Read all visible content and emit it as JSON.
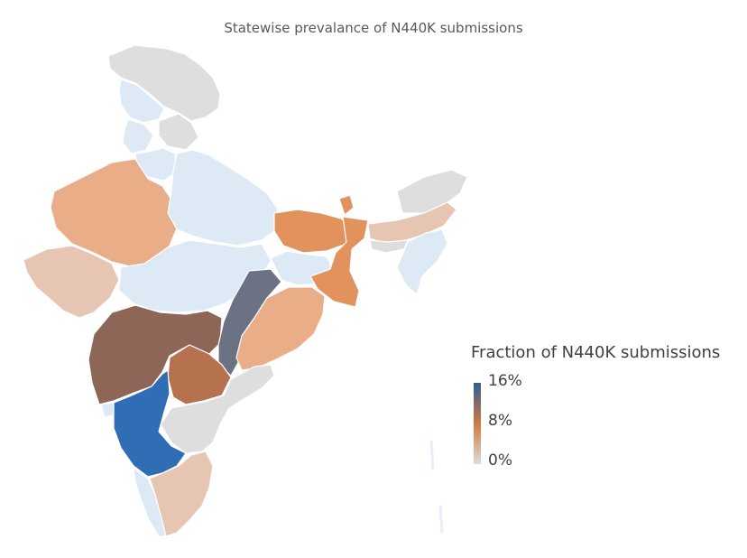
{
  "title": "Statewise prevalance of N440K submissions",
  "legend": {
    "title": "Fraction of N440K submissions",
    "ticks": [
      "16%",
      "8%",
      "0%"
    ],
    "color_low": "#dcdcdc",
    "color_mid": "#ce7a3e",
    "color_high": "#2f5e98"
  },
  "colors": {
    "very_light_blue": "#dde9f5",
    "light_gray": "#dedede",
    "peach": "#e9ad88",
    "light_peach": "#e6c5b2",
    "orange": "#e2925c",
    "brown": "#8e6657",
    "tan_brown": "#b6724f",
    "slate": "#6b7283",
    "blue": "#2f6db5"
  },
  "regions": [
    {
      "name": "jammu-kashmir",
      "color_key": "light_gray"
    },
    {
      "name": "himachal",
      "color_key": "very_light_blue"
    },
    {
      "name": "punjab",
      "color_key": "very_light_blue"
    },
    {
      "name": "haryana",
      "color_key": "very_light_blue"
    },
    {
      "name": "uttarakhand",
      "color_key": "very_light_blue"
    },
    {
      "name": "rajasthan",
      "color_key": "peach"
    },
    {
      "name": "gujarat",
      "color_key": "light_peach"
    },
    {
      "name": "uttar-pradesh",
      "color_key": "very_light_blue"
    },
    {
      "name": "madhya-pradesh",
      "color_key": "very_light_blue"
    },
    {
      "name": "bihar",
      "color_key": "orange"
    },
    {
      "name": "jharkhand",
      "color_key": "very_light_blue"
    },
    {
      "name": "west-bengal",
      "color_key": "orange"
    },
    {
      "name": "sikkim",
      "color_key": "orange"
    },
    {
      "name": "assam",
      "color_key": "light_peach"
    },
    {
      "name": "arunachal",
      "color_key": "light_gray"
    },
    {
      "name": "northeast-south",
      "color_key": "very_light_blue"
    },
    {
      "name": "maharashtra",
      "color_key": "brown"
    },
    {
      "name": "chhattisgarh",
      "color_key": "slate"
    },
    {
      "name": "odisha",
      "color_key": "peach"
    },
    {
      "name": "telangana",
      "color_key": "tan_brown"
    },
    {
      "name": "andhra-pradesh",
      "color_key": "light_gray"
    },
    {
      "name": "karnataka",
      "color_key": "blue"
    },
    {
      "name": "goa",
      "color_key": "very_light_blue"
    },
    {
      "name": "kerala",
      "color_key": "very_light_blue"
    },
    {
      "name": "tamil-nadu",
      "color_key": "light_peach"
    }
  ]
}
